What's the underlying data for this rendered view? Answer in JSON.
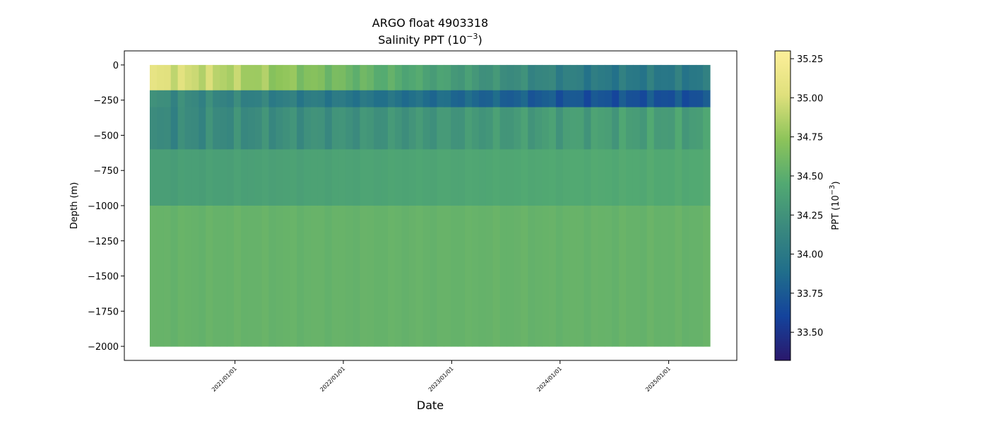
{
  "chart_data": {
    "type": "heatmap",
    "title": "ARGO float 4903318",
    "subtitle_base": "Salinity PPT (10",
    "subtitle_exp": "−3",
    "subtitle_end": ")",
    "xlabel": "Date",
    "ylabel": "Depth (m)",
    "x_range": [
      "2020/03/20",
      "2025/05/20"
    ],
    "ylim": [
      -2100,
      100
    ],
    "y_ticks": [
      0,
      -250,
      -500,
      -750,
      -1000,
      -1250,
      -1500,
      -1750,
      -2000
    ],
    "y_tick_labels": [
      "0",
      "−250",
      "−500",
      "−750",
      "−1000",
      "−1250",
      "−1500",
      "−1750",
      "−2000"
    ],
    "x_ticks": [
      "2021/01/01",
      "2022/01/01",
      "2023/01/01",
      "2024/01/01",
      "2025/01/01"
    ],
    "colorbar": {
      "label_base": "PPT (10",
      "label_exp": "−3",
      "label_end": ")",
      "range": [
        33.32,
        35.3
      ],
      "ticks": [
        33.5,
        33.75,
        34.0,
        34.25,
        34.5,
        34.75,
        35.0,
        35.25
      ],
      "tick_labels": [
        "33.50",
        "33.75",
        "34.00",
        "34.25",
        "34.50",
        "34.75",
        "35.00",
        "35.25"
      ],
      "colormap": "haline",
      "colors": [
        "#2a186c",
        "#14439c",
        "#206e8b",
        "#3a897e",
        "#52a972",
        "#8dc45a",
        "#dfe07c",
        "#fdef9a"
      ]
    },
    "profile_depth_range": [
      -1990,
      0
    ],
    "salinity_layers": [
      {
        "depth_top": 0,
        "depth_bottom": -180,
        "salinity_early": 35.05,
        "salinity_late": 34.0
      },
      {
        "depth_top": -180,
        "depth_bottom": -300,
        "salinity_early": 34.2,
        "salinity_late": 33.7
      },
      {
        "depth_top": -300,
        "depth_bottom": -600,
        "salinity_early": 34.15,
        "salinity_late": 34.35
      },
      {
        "depth_top": -600,
        "depth_bottom": -1000,
        "salinity_early": 34.35,
        "salinity_late": 34.45
      },
      {
        "depth_top": -1000,
        "depth_bottom": -2000,
        "salinity_early": 34.55,
        "salinity_late": 34.55
      }
    ],
    "grid": false
  }
}
